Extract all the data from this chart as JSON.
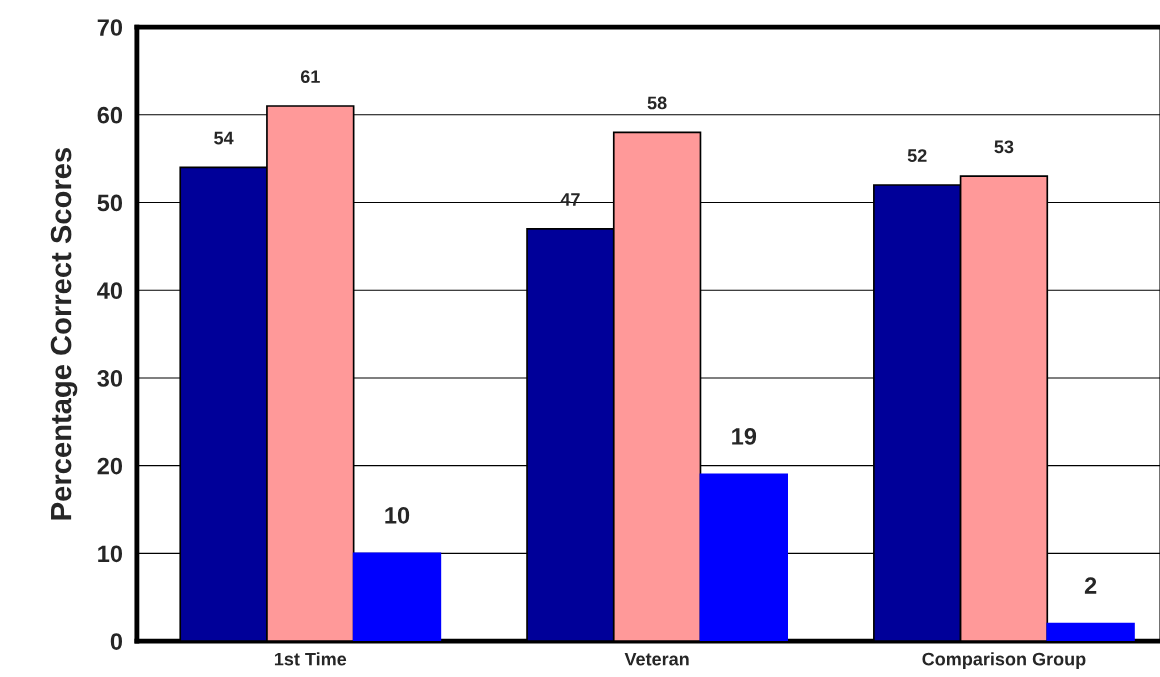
{
  "chart_data": {
    "type": "bar",
    "ylabel": "Percentage Correct Scores",
    "categories": [
      "1st Time",
      "Veteran",
      "Comparison Group"
    ],
    "series": [
      {
        "color": "#000099",
        "values": [
          54,
          47,
          52
        ]
      },
      {
        "color": "#ff9999",
        "values": [
          61,
          58,
          53
        ]
      },
      {
        "color": "#0000ff",
        "values": [
          10,
          19,
          2
        ]
      }
    ],
    "ylim": [
      0,
      70
    ],
    "yticks": [
      0,
      10,
      20,
      30,
      40,
      50,
      60,
      70
    ],
    "grid": "y",
    "data_labels": true,
    "legend": false
  }
}
